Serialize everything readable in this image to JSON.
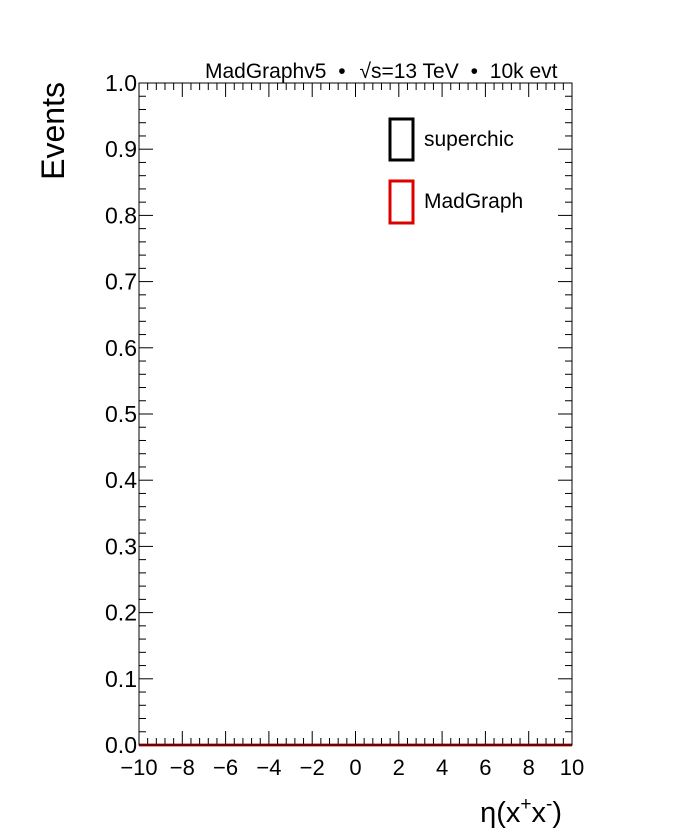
{
  "header": {
    "generator": "MadGraphv5",
    "bullet": "•",
    "sqrt_symbol": "√",
    "energy_text": "s=13 TeV",
    "events_text": "10k evt"
  },
  "chart_data": {
    "type": "line",
    "title": "",
    "ylabel": "Events",
    "xlabel": {
      "base": "η(x",
      "sup1": "+",
      "mid": "x",
      "sup2": "-",
      "end": ")"
    },
    "xlim": [
      -10,
      10
    ],
    "ylim": [
      0,
      1
    ],
    "x_ticks": [
      -10,
      -8,
      -6,
      -4,
      -2,
      0,
      2,
      4,
      6,
      8,
      10
    ],
    "x_tick_labels": [
      "−10",
      "−8",
      "−6",
      "−4",
      "−2",
      "0",
      "2",
      "4",
      "6",
      "8",
      "10"
    ],
    "y_ticks": [
      0,
      0.1,
      0.2,
      0.3,
      0.4,
      0.5,
      0.6,
      0.7,
      0.8,
      0.9,
      1
    ],
    "y_tick_labels": [
      "0.0",
      "0.1",
      "0.2",
      "0.3",
      "0.4",
      "0.5",
      "0.6",
      "0.7",
      "0.8",
      "0.9",
      "1.0"
    ],
    "grid": false,
    "legend_position": "top-right",
    "series": [
      {
        "name": "superchic",
        "color": "#000000",
        "x": [
          -10,
          10
        ],
        "y": [
          0,
          0
        ]
      },
      {
        "name": "MadGraph",
        "color": "#dd0000",
        "x": [
          -10,
          10
        ],
        "y": [
          0,
          0
        ]
      }
    ]
  }
}
